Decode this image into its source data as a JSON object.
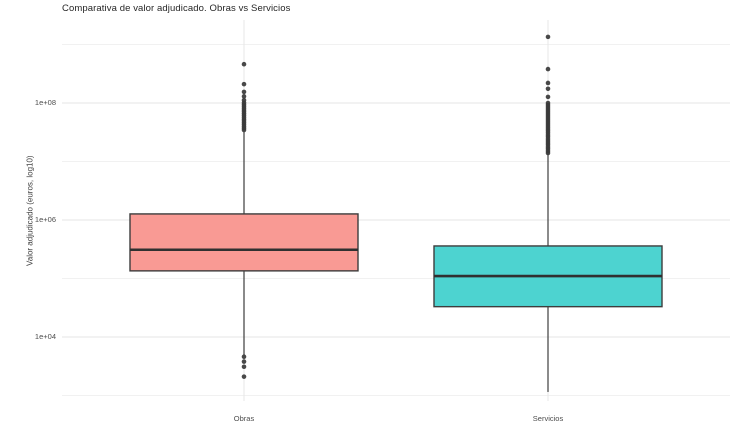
{
  "page": {
    "background": "#ffffff"
  },
  "chart_data": {
    "type": "boxplot",
    "title": "Comparativa de valor adjudicado. Obras vs Servicios",
    "xlabel": "",
    "ylabel": "Valor adjudicado (euros, log10)",
    "y_scale": "log10",
    "ylim": [
      800,
      2600000000
    ],
    "grid": true,
    "legend": "none",
    "y_major_ticks": [
      {
        "label": "1e+04",
        "value": 10000
      },
      {
        "label": "1e+06",
        "value": 1000000
      },
      {
        "label": "1e+08",
        "value": 100000000
      }
    ],
    "y_minor_values": [
      1000,
      100000,
      10000000,
      1000000000
    ],
    "categories": [
      "Obras",
      "Servicios"
    ],
    "series": [
      {
        "name": "Obras",
        "fill": "#F99A94",
        "q1": 135000,
        "median": 310000,
        "q3": 1270000,
        "whisker_low": 4900,
        "whisker_high": 32000000,
        "outliers_high": [
          460000000.0,
          210000000.0,
          155000000.0,
          130000000.0,
          112000000.0,
          101000000.0,
          94400000.0,
          87900000.0,
          81800000.0,
          76100000.0,
          70800000.0,
          65900000.0,
          61300000.0,
          57000000.0,
          53100000.0,
          49400000.0,
          46000000.0,
          42800000.0,
          39800000.0,
          37100000.0,
          34500000.0
        ],
        "outliers_low": [
          4600,
          3800,
          3100,
          2100
        ]
      },
      {
        "name": "Servicios",
        "fill": "#4DD3D0",
        "q1": 33000,
        "median": 110000,
        "q3": 360000,
        "whisker_low": 1150,
        "whisker_high": 14000000,
        "outliers_high": [
          1350000000.0,
          380000000.0,
          220000000.0,
          175000000.0,
          127000000.0,
          100000000.0,
          92500000.0,
          85500000.0,
          79000000.0,
          73100000.0,
          67500000.0,
          62400000.0,
          57700000.0,
          53300000.0,
          49300000.0,
          45600000.0,
          42100000.0,
          38900000.0,
          36000000.0,
          33300000.0,
          30800000.0,
          28400000.0,
          26300000.0,
          24300000.0,
          22400000.0,
          20700000.0,
          19200000.0,
          17700000.0,
          16400000.0,
          15100000.0,
          14000000.0
        ],
        "outliers_low": []
      }
    ]
  }
}
